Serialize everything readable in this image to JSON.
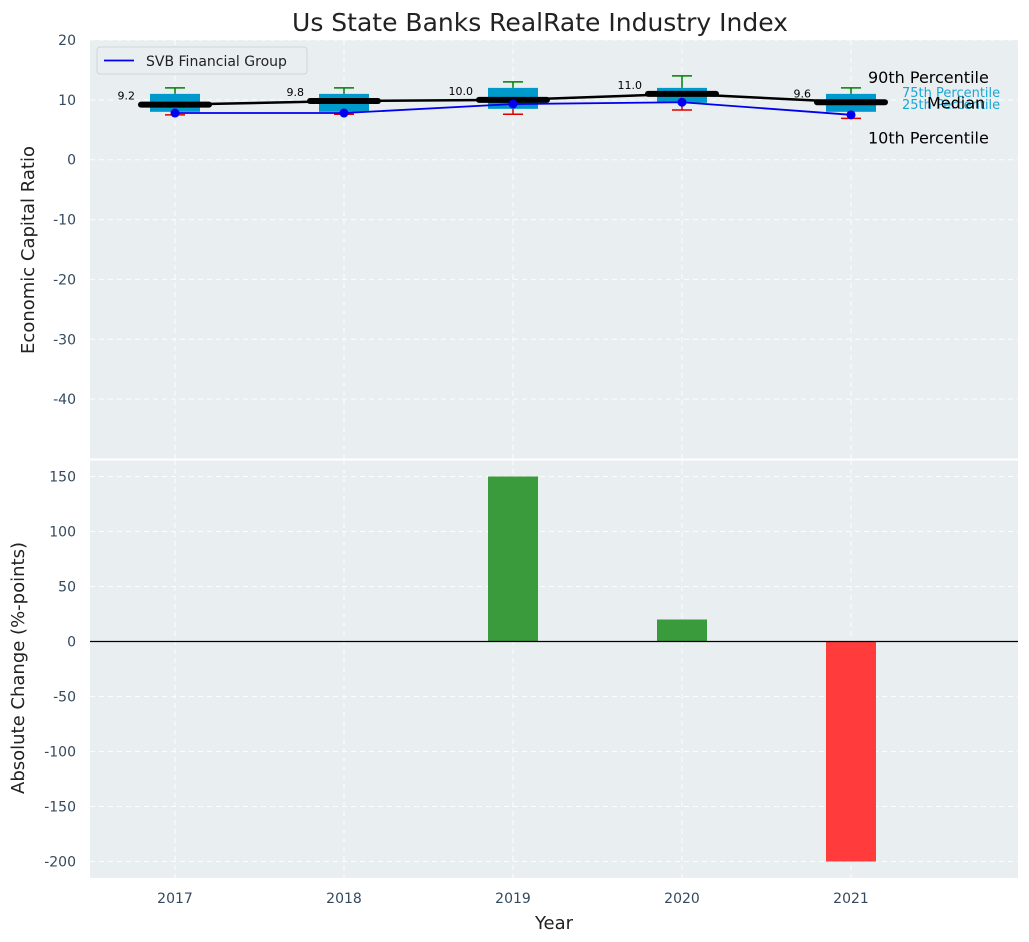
{
  "title": "Us State Banks RealRate Industry Index",
  "colors": {
    "panel_bg": "#e9eef0",
    "box": "#0099cc",
    "median": "#000000",
    "company_line": "#0000ee",
    "whisker_top": "#008000",
    "whisker_bottom": "#dd0000",
    "bar_positive": "#3a9b3c",
    "bar_negative": "#ff3b3b",
    "quartile_text": "#1aa7d6"
  },
  "chart_data": [
    {
      "type": "box",
      "ylabel": "Economic Capital Ratio",
      "xlabel": "",
      "ylim": [
        -50,
        20
      ],
      "yticks": [
        20,
        10,
        0,
        -10,
        -20,
        -30,
        -40
      ],
      "categories": [
        "2017",
        "2018",
        "2019",
        "2020",
        "2021"
      ],
      "p10": [
        7.5,
        7.6,
        7.6,
        8.3,
        6.9
      ],
      "p25": [
        8.0,
        8.0,
        8.5,
        9.5,
        8.0
      ],
      "median": [
        9.2,
        9.8,
        10.0,
        11.0,
        9.6
      ],
      "p75": [
        11.0,
        11.0,
        12.0,
        12.0,
        11.0
      ],
      "p90": [
        12.0,
        12.0,
        13.0,
        14.0,
        12.0
      ],
      "median_labels": [
        "9.2",
        "9.8",
        "10.0",
        "11.0",
        "9.6"
      ],
      "series": [
        {
          "name": "SVB Financial Group",
          "values": [
            7.8,
            7.8,
            9.3,
            9.6,
            7.5
          ]
        }
      ],
      "legend": {
        "position": "top-left",
        "entries": [
          "SVB Financial Group"
        ]
      },
      "annotations": {
        "p90": "90th Percentile",
        "p75": "75th Percentile",
        "median": "Median",
        "p25": "25th Percentile",
        "p10": "10th Percentile"
      },
      "grid": true
    },
    {
      "type": "bar",
      "ylabel": "Absolute Change (%-points)",
      "xlabel": "Year",
      "ylim": [
        -215,
        165
      ],
      "yticks": [
        150,
        100,
        50,
        0,
        -50,
        -100,
        -150,
        -200
      ],
      "categories": [
        "2017",
        "2018",
        "2019",
        "2020",
        "2021"
      ],
      "values": [
        0,
        0,
        150,
        20,
        -200
      ],
      "grid": true
    }
  ]
}
